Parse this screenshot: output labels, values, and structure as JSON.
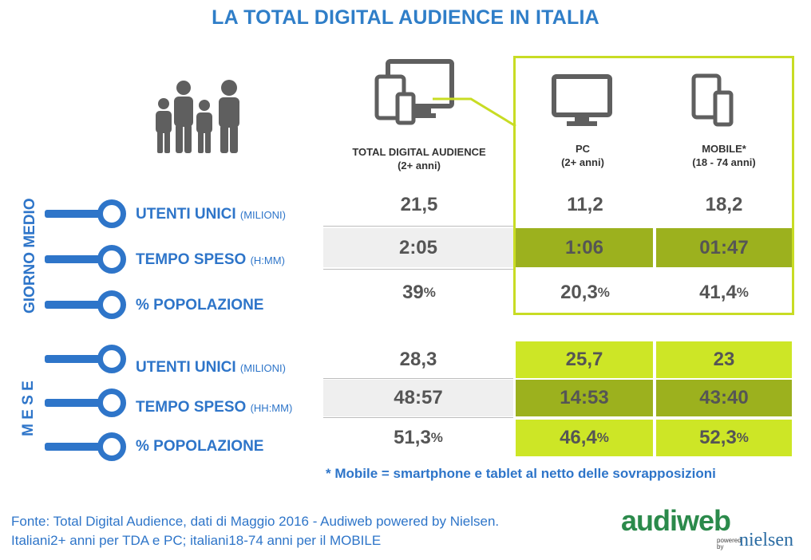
{
  "title": "LA TOTAL DIGITAL AUDIENCE IN ITALIA",
  "columns": {
    "tda": {
      "line1": "TOTAL DIGITAL AUDIENCE",
      "line2": "(2+ anni)"
    },
    "pc": {
      "line1": "PC",
      "line2": "(2+ anni)"
    },
    "mobile": {
      "line1": "MOBILE*",
      "line2": "(18 - 74 anni)"
    }
  },
  "sections": {
    "giorno": "GIORNO MEDIO",
    "mese": "M E S E"
  },
  "rows": [
    {
      "label": "UTENTI UNICI",
      "unit": "(MILIONI)",
      "tda": "21,5",
      "tda_pct": "",
      "pc": "11,2",
      "pc_pct": "",
      "mobile": "18,2",
      "mobile_pct": ""
    },
    {
      "label": "TEMPO SPESO",
      "unit": "(H:MM)",
      "tda": "2:05",
      "tda_pct": "",
      "pc": "1:06",
      "pc_pct": "",
      "mobile": "01:47",
      "mobile_pct": ""
    },
    {
      "label": "% POPOLAZIONE",
      "unit": "",
      "tda": "39",
      "tda_pct": "%",
      "pc": "20,3",
      "pc_pct": "%",
      "mobile": "41,4",
      "mobile_pct": "%"
    },
    {
      "label": "UTENTI UNICI",
      "unit": "(MILIONI)",
      "tda": "28,3",
      "tda_pct": "",
      "pc": "25,7",
      "pc_pct": "",
      "mobile": "23",
      "mobile_pct": ""
    },
    {
      "label": "TEMPO SPESO",
      "unit": "(HH:MM)",
      "tda": "48:57",
      "tda_pct": "",
      "pc": "14:53",
      "pc_pct": "",
      "mobile": "43:40",
      "mobile_pct": ""
    },
    {
      "label": "% POPOLAZIONE",
      "unit": "",
      "tda": "51,3",
      "tda_pct": "%",
      "pc": "46,4",
      "pc_pct": "%",
      "mobile": "52,3",
      "mobile_pct": "%"
    }
  ],
  "footnote": "* Mobile = smartphone e tablet al netto delle sovrapposizioni",
  "source": {
    "line1": "Fonte: Total Digital Audience, dati di Maggio 2016 - Audiweb powered by Nielsen.",
    "line2": "Italiani2+ anni per TDA e PC; italiani18-74 anni per il MOBILE"
  },
  "logo": {
    "audiweb": "audiweb",
    "powered": "powered by",
    "nielsen": "nielsen"
  },
  "colors": {
    "accent_blue": "#2e75c9",
    "lime": "#cde626",
    "olive": "#9cb11e",
    "grey": "#efefef",
    "frame": "#c8dc24"
  },
  "icons": [
    "family-icon",
    "devices-icon",
    "monitor-icon",
    "mobile-devices-icon"
  ]
}
